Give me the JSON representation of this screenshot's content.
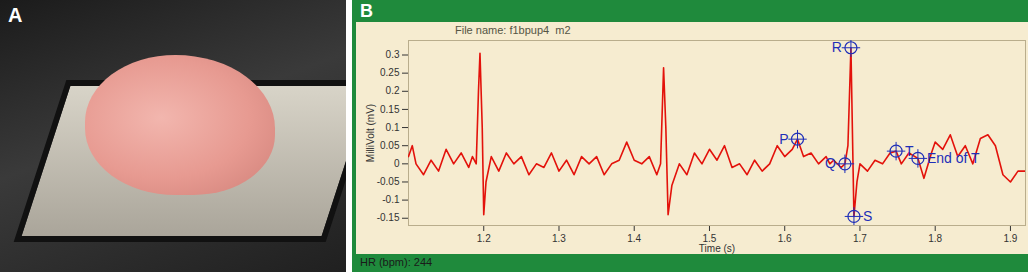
{
  "image_panel": {
    "label": "A"
  },
  "chart_data": {
    "type": "line",
    "panel_label": "B",
    "title": "File name: f1bpup4  m2",
    "caption": "HR (bpm): 244",
    "x_label": "Time (s)",
    "y_label": "MilliVolt (mV)",
    "color": "#e3120b",
    "x": [
      1.1,
      1.105,
      1.11,
      1.12,
      1.13,
      1.14,
      1.15,
      1.16,
      1.17,
      1.18,
      1.185,
      1.19,
      1.193,
      1.195,
      1.198,
      1.2,
      1.203,
      1.21,
      1.22,
      1.23,
      1.24,
      1.25,
      1.26,
      1.27,
      1.28,
      1.29,
      1.3,
      1.31,
      1.32,
      1.33,
      1.34,
      1.35,
      1.36,
      1.37,
      1.38,
      1.39,
      1.4,
      1.41,
      1.42,
      1.43,
      1.435,
      1.439,
      1.442,
      1.445,
      1.45,
      1.46,
      1.47,
      1.48,
      1.49,
      1.5,
      1.51,
      1.52,
      1.53,
      1.54,
      1.55,
      1.56,
      1.57,
      1.58,
      1.59,
      1.6,
      1.61,
      1.617,
      1.625,
      1.635,
      1.645,
      1.655,
      1.66,
      1.665,
      1.675,
      1.68,
      1.684,
      1.688,
      1.692,
      1.696,
      1.7,
      1.71,
      1.72,
      1.73,
      1.74,
      1.748,
      1.755,
      1.765,
      1.777,
      1.785,
      1.795,
      1.8,
      1.81,
      1.82,
      1.83,
      1.84,
      1.85,
      1.86,
      1.87,
      1.88,
      1.89,
      1.9,
      1.91,
      1.92
    ],
    "values": [
      0.02,
      0.05,
      0.0,
      -0.03,
      0.01,
      -0.02,
      0.04,
      0.0,
      0.03,
      -0.01,
      0.02,
      0.0,
      0.2,
      0.305,
      0.1,
      -0.14,
      -0.05,
      0.02,
      -0.02,
      0.03,
      0.0,
      0.02,
      -0.03,
      0.0,
      -0.01,
      0.03,
      -0.02,
      0.01,
      -0.03,
      0.02,
      0.0,
      0.02,
      -0.03,
      0.0,
      0.01,
      0.06,
      0.01,
      0.0,
      0.02,
      -0.03,
      0.0,
      0.265,
      0.1,
      -0.14,
      -0.06,
      0.0,
      -0.03,
      0.03,
      0.0,
      0.04,
      0.01,
      0.05,
      -0.01,
      0.0,
      -0.03,
      0.01,
      -0.02,
      0.0,
      0.05,
      0.02,
      0.04,
      0.068,
      0.02,
      0.03,
      0.0,
      0.02,
      0.0,
      0.01,
      -0.01,
      0.0,
      0.05,
      0.32,
      -0.145,
      -0.05,
      0.0,
      -0.02,
      0.01,
      0.0,
      0.03,
      0.035,
      0.0,
      0.03,
      0.015,
      -0.04,
      0.03,
      0.06,
      0.04,
      0.08,
      0.02,
      0.05,
      0.0,
      0.07,
      0.08,
      0.05,
      -0.03,
      -0.05,
      -0.02,
      -0.02
    ],
    "xlim": [
      1.1,
      1.92
    ],
    "ylim": [
      -0.17,
      0.34
    ],
    "xticks": [
      1.2,
      1.3,
      1.4,
      1.5,
      1.6,
      1.7,
      1.8,
      1.9
    ],
    "yticks": [
      -0.15,
      -0.1,
      -0.05,
      0,
      0.05,
      0.1,
      0.15,
      0.2,
      0.25,
      0.3
    ],
    "annotations": [
      {
        "text": "P",
        "x": 1.617,
        "y": 0.068
      },
      {
        "text": "Q",
        "x": 1.68,
        "y": 0.0
      },
      {
        "text": "R",
        "x": 1.688,
        "y": 0.32
      },
      {
        "text": "S",
        "x": 1.692,
        "y": -0.145
      },
      {
        "text": "T",
        "x": 1.748,
        "y": 0.035
      },
      {
        "text": "End of T",
        "x": 1.777,
        "y": 0.015
      }
    ]
  }
}
